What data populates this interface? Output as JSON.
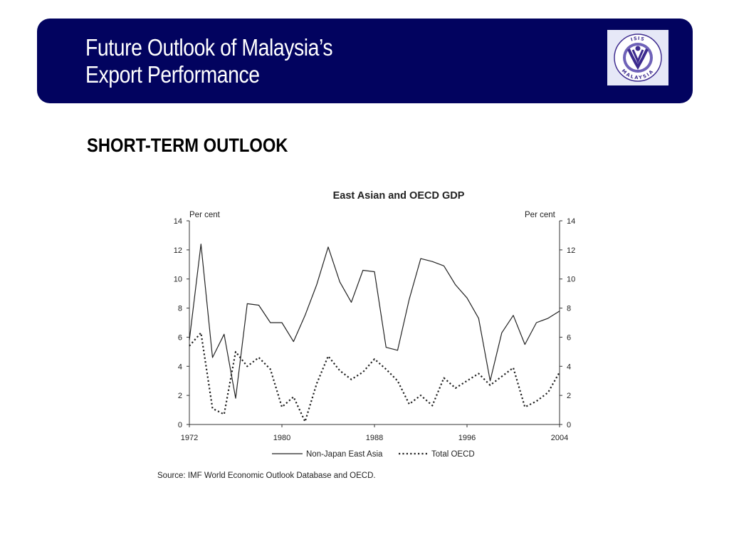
{
  "header": {
    "title_line1": "Future Outlook of Malaysia’s",
    "title_line2": "Export Performance",
    "logo_top_text": "ISIS",
    "logo_bottom_text": "MALAYSIA"
  },
  "colors": {
    "banner": "#02035f",
    "logo_background": "#e6e8f7",
    "logo_accent": "#3d2b8f",
    "series_line": "#222222"
  },
  "subtitle": "SHORT-TERM OUTLOOK",
  "source_note": "Source: IMF World Economic Outlook Database and OECD.",
  "chart_data": {
    "type": "line",
    "title": "East Asian and OECD GDP",
    "ylabel_left": "Per cent",
    "ylabel_right": "Per cent",
    "xlim": [
      1972,
      2004
    ],
    "ylim": [
      0,
      14
    ],
    "x_ticks": [
      1972,
      1980,
      1988,
      1996,
      2004
    ],
    "y_ticks": [
      0,
      2,
      4,
      6,
      8,
      10,
      12,
      14
    ],
    "grid": false,
    "legend": "bottom",
    "x": [
      1972,
      1973,
      1974,
      1975,
      1976,
      1977,
      1978,
      1979,
      1980,
      1981,
      1982,
      1983,
      1984,
      1985,
      1986,
      1987,
      1988,
      1989,
      1990,
      1991,
      1992,
      1993,
      1994,
      1995,
      1996,
      1997,
      1998,
      1999,
      2000,
      2001,
      2002,
      2003,
      2004
    ],
    "series": [
      {
        "name": "Non-Japan East Asia",
        "style": "solid",
        "values": [
          5.8,
          12.4,
          4.6,
          6.2,
          1.8,
          8.3,
          8.2,
          7.0,
          7.0,
          5.7,
          7.5,
          9.6,
          12.2,
          9.8,
          8.4,
          10.6,
          10.5,
          5.3,
          5.1,
          8.6,
          11.4,
          11.2,
          10.9,
          9.6,
          8.7,
          7.3,
          3.0,
          6.3,
          7.5,
          5.5,
          7.0,
          7.3,
          7.8
        ]
      },
      {
        "name": "Total OECD",
        "style": "dotted",
        "values": [
          5.4,
          6.3,
          1.1,
          0.7,
          5.0,
          4.0,
          4.6,
          3.8,
          1.2,
          1.9,
          0.2,
          2.8,
          4.7,
          3.7,
          3.1,
          3.6,
          4.5,
          3.8,
          3.0,
          1.4,
          2.0,
          1.3,
          3.2,
          2.5,
          3.0,
          3.5,
          2.7,
          3.3,
          3.9,
          1.2,
          1.6,
          2.2,
          3.6
        ]
      }
    ]
  }
}
